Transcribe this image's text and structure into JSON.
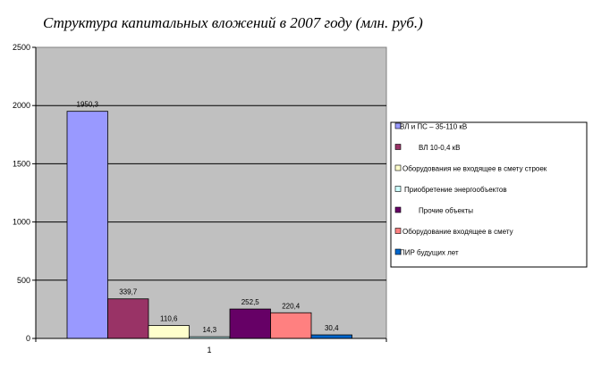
{
  "chart_data": {
    "type": "bar",
    "title": "Структура капитальных вложений  в 2007 году (млн. руб.)",
    "xlabel": "",
    "ylabel": "",
    "categories": [
      "1"
    ],
    "ylim": [
      0,
      2500
    ],
    "yticks": [
      0,
      500,
      1000,
      1500,
      2000,
      2500
    ],
    "grid": true,
    "legend_position": "right",
    "series": [
      {
        "name": "ВЛ и ПС – 35-110 кВ",
        "value": 1950.3,
        "label": "1950,3",
        "color": "#9999ff"
      },
      {
        "name": "ВЛ 10-0,4 кВ",
        "value": 339.7,
        "label": "339,7",
        "color": "#993366"
      },
      {
        "name": "Оборудования не входящее в смету строек",
        "value": 110.6,
        "label": "110,6",
        "color": "#ffffcc"
      },
      {
        "name": "Приобретение энергообъектов",
        "value": 14.3,
        "label": "14,3",
        "color": "#ccffff"
      },
      {
        "name": "Прочие объекты",
        "value": 252.5,
        "label": "252,5",
        "color": "#660066"
      },
      {
        "name": "Оборудование входящее в смету",
        "value": 220.4,
        "label": "220,4",
        "color": "#ff8080"
      },
      {
        "name": "ПИР будущих  лет",
        "value": 30.4,
        "label": "30,4",
        "color": "#0066cc"
      }
    ],
    "plot_background": "#c0c0c0"
  }
}
